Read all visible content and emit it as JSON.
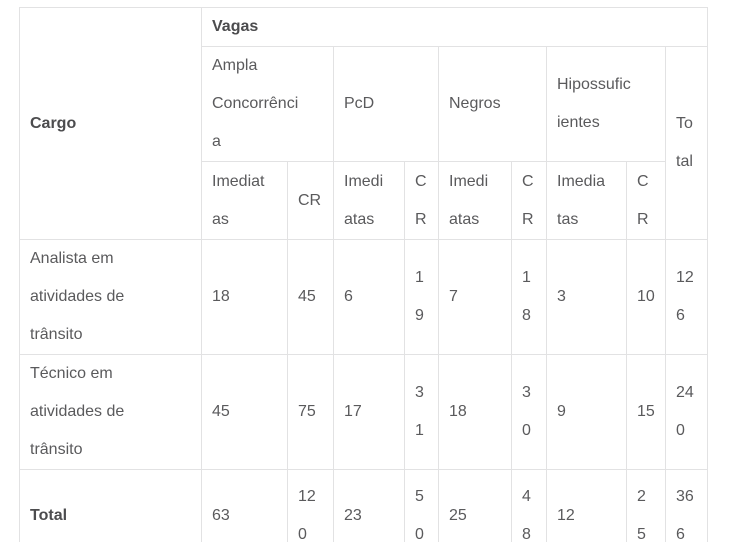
{
  "chart_data": {
    "type": "table",
    "corner_header": "Cargo",
    "group_header": "Vagas",
    "column_groups": [
      {
        "label": "Ampla Concorrência",
        "subcolumns": [
          "Imediatas",
          "CR"
        ]
      },
      {
        "label": "PcD",
        "subcolumns": [
          "Imediatas",
          "CR"
        ]
      },
      {
        "label": "Negros",
        "subcolumns": [
          "Imediatas",
          "CR"
        ]
      },
      {
        "label": "Hipossuficientes",
        "subcolumns": [
          "Imediatas",
          "CR"
        ]
      }
    ],
    "total_column_header": "Total",
    "rows": [
      {
        "cargo": "Analista em atividades de trânsito",
        "values": [
          18,
          45,
          6,
          19,
          7,
          18,
          3,
          10,
          126
        ],
        "is_total": false
      },
      {
        "cargo": "Técnico em atividades de trânsito",
        "values": [
          45,
          75,
          17,
          31,
          18,
          30,
          9,
          15,
          240
        ],
        "is_total": false
      },
      {
        "cargo": "Total",
        "values": [
          63,
          120,
          23,
          50,
          25,
          48,
          12,
          25,
          366
        ],
        "is_total": true
      }
    ],
    "layout_hints": {
      "grid": true,
      "header_rows": 3,
      "clipped_bottom": true
    },
    "colors": {
      "text": "#5a5a5c",
      "text_bold": "#4c4c4e",
      "border": "#e2e2e3",
      "background": "#ffffff"
    }
  }
}
